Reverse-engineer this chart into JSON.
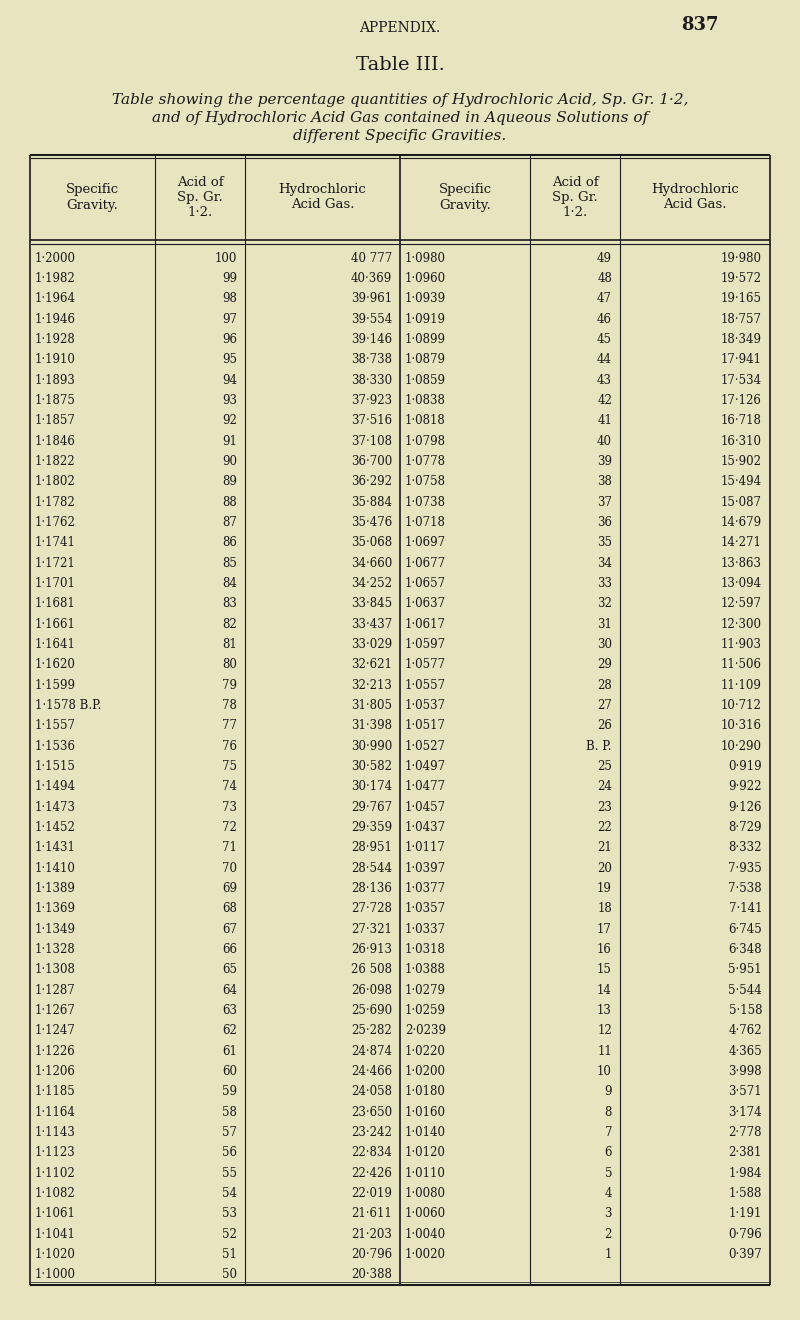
{
  "bg_color": "#e8e4c0",
  "text_color": "#1a1a1a",
  "page_number": "837",
  "header_appendix": "APPENDIX.",
  "title": "Table III.",
  "subtitle_line1": "Table showing the percentage quantities of Hydrochloric Acid, Sp. Gr. 1·2,",
  "subtitle_line2": "and of Hydrochloric Acid Gas contained in Aqueous Solutions of",
  "subtitle_line3": "different Specific Gravities.",
  "col_headers": [
    "Specific\nGravity.",
    "Acid of\nSp. Gr.\n1·2.",
    "Hydrochloric\nAcid Gas.",
    "Specific\nGravity.",
    "Acid of\nSp. Gr.\n1·2.",
    "Hydrochloric\nAcid Gas."
  ],
  "left_data": [
    [
      "1·2000",
      "100",
      "40 777"
    ],
    [
      "1·1982",
      "99",
      "40·369"
    ],
    [
      "1·1964",
      "98",
      "39·961"
    ],
    [
      "1·1946",
      "97",
      "39·554"
    ],
    [
      "1·1928",
      "96",
      "39·146"
    ],
    [
      "1·1910",
      "95",
      "38·738"
    ],
    [
      "1·1893",
      "94",
      "38·330"
    ],
    [
      "1·1875",
      "93",
      "37·923"
    ],
    [
      "1·1857",
      "92",
      "37·516"
    ],
    [
      "1·1846",
      "91",
      "37·108"
    ],
    [
      "1·1822",
      "90",
      "36·700"
    ],
    [
      "1·1802",
      "89",
      "36·292"
    ],
    [
      "1·1782",
      "88",
      "35·884"
    ],
    [
      "1·1762",
      "87",
      "35·476"
    ],
    [
      "1·1741",
      "86",
      "35·068"
    ],
    [
      "1·1721",
      "85",
      "34·660"
    ],
    [
      "1·1701",
      "84",
      "34·252"
    ],
    [
      "1·1681",
      "83",
      "33·845"
    ],
    [
      "1·1661",
      "82",
      "33·437"
    ],
    [
      "1·1641",
      "81",
      "33·029"
    ],
    [
      "1·1620",
      "80",
      "32·621"
    ],
    [
      "1·1599",
      "79",
      "32·213"
    ],
    [
      "1·1578 B.P.",
      "78",
      "31·805"
    ],
    [
      "1·1557",
      "77",
      "31·398"
    ],
    [
      "1·1536",
      "76",
      "30·990"
    ],
    [
      "1·1515",
      "75",
      "30·582"
    ],
    [
      "1·1494",
      "74",
      "30·174"
    ],
    [
      "1·1473",
      "73",
      "29·767"
    ],
    [
      "1·1452",
      "72",
      "29·359"
    ],
    [
      "1·1431",
      "71",
      "28·951"
    ],
    [
      "1·1410",
      "70",
      "28·544"
    ],
    [
      "1·1389",
      "69",
      "28·136"
    ],
    [
      "1·1369",
      "68",
      "27·728"
    ],
    [
      "1·1349",
      "67",
      "27·321"
    ],
    [
      "1·1328",
      "66",
      "26·913"
    ],
    [
      "1·1308",
      "65",
      "26 508"
    ],
    [
      "1·1287",
      "64",
      "26·098"
    ],
    [
      "1·1267",
      "63",
      "25·690"
    ],
    [
      "1·1247",
      "62",
      "25·282"
    ],
    [
      "1·1226",
      "61",
      "24·874"
    ],
    [
      "1·1206",
      "60",
      "24·466"
    ],
    [
      "1·1185",
      "59",
      "24·058"
    ],
    [
      "1·1164",
      "58",
      "23·650"
    ],
    [
      "1·1143",
      "57",
      "23·242"
    ],
    [
      "1·1123",
      "56",
      "22·834"
    ],
    [
      "1·1102",
      "55",
      "22·426"
    ],
    [
      "1·1082",
      "54",
      "22·019"
    ],
    [
      "1·1061",
      "53",
      "21·611"
    ],
    [
      "1·1041",
      "52",
      "21·203"
    ],
    [
      "1·1020",
      "51",
      "20·796"
    ],
    [
      "1·1000",
      "50",
      "20·388"
    ]
  ],
  "right_data": [
    [
      "1·0980",
      "49",
      "19·980"
    ],
    [
      "1·0960",
      "48",
      "19·572"
    ],
    [
      "1·0939",
      "47",
      "19·165"
    ],
    [
      "1·0919",
      "46",
      "18·757"
    ],
    [
      "1·0899",
      "45",
      "18·349"
    ],
    [
      "1·0879",
      "44",
      "17·941"
    ],
    [
      "1·0859",
      "43",
      "17·534"
    ],
    [
      "1·0838",
      "42",
      "17·126"
    ],
    [
      "1·0818",
      "41",
      "16·718"
    ],
    [
      "1·0798",
      "40",
      "16·310"
    ],
    [
      "1·0778",
      "39",
      "15·902"
    ],
    [
      "1·0758",
      "38",
      "15·494"
    ],
    [
      "1·0738",
      "37",
      "15·087"
    ],
    [
      "1·0718",
      "36",
      "14·679"
    ],
    [
      "1·0697",
      "35",
      "14·271"
    ],
    [
      "1·0677",
      "34",
      "13·863"
    ],
    [
      "1·0657",
      "33",
      "13·094"
    ],
    [
      "1·0637",
      "32",
      "12·597"
    ],
    [
      "1·0617",
      "31",
      "12·300"
    ],
    [
      "1·0597",
      "30",
      "11·903"
    ],
    [
      "1·0577",
      "29",
      "11·506"
    ],
    [
      "1·0557",
      "28",
      "11·109"
    ],
    [
      "1·0537",
      "27",
      "10·712"
    ],
    [
      "1·0517",
      "26",
      "10·316"
    ],
    [
      "1·0527",
      "B. P.",
      "10·290"
    ],
    [
      "1·0497",
      "25",
      "0·919"
    ],
    [
      "1·0477",
      "24",
      "9·922"
    ],
    [
      "1·0457",
      "23",
      "9·126"
    ],
    [
      "1·0437",
      "22",
      "8·729"
    ],
    [
      "1·0117",
      "21",
      "8·332"
    ],
    [
      "1·0397",
      "20",
      "7·935"
    ],
    [
      "1·0377",
      "19",
      "7·538"
    ],
    [
      "1·0357",
      "18",
      "7·141"
    ],
    [
      "1·0337",
      "17",
      "6·745"
    ],
    [
      "1·0318",
      "16",
      "6·348"
    ],
    [
      "1·0388",
      "15",
      "5·951"
    ],
    [
      "1·0279",
      "14",
      "5·544"
    ],
    [
      "1·0259",
      "13",
      "5·158"
    ],
    [
      "2·0239",
      "12",
      "4·762"
    ],
    [
      "1·0220",
      "11",
      "4·365"
    ],
    [
      "1·0200",
      "10",
      "3·998"
    ],
    [
      "1·0180",
      "9",
      "3·571"
    ],
    [
      "1·0160",
      "8",
      "3·174"
    ],
    [
      "1·0140",
      "7",
      "2·778"
    ],
    [
      "1·0120",
      "6",
      "2·381"
    ],
    [
      "1·0110",
      "5",
      "1·984"
    ],
    [
      "1·0080",
      "4",
      "1·588"
    ],
    [
      "1·0060",
      "3",
      "1·191"
    ],
    [
      "1·0040",
      "2",
      "0·796"
    ],
    [
      "1·0020",
      "1",
      "0·397"
    ],
    [
      "",
      "",
      ""
    ]
  ]
}
